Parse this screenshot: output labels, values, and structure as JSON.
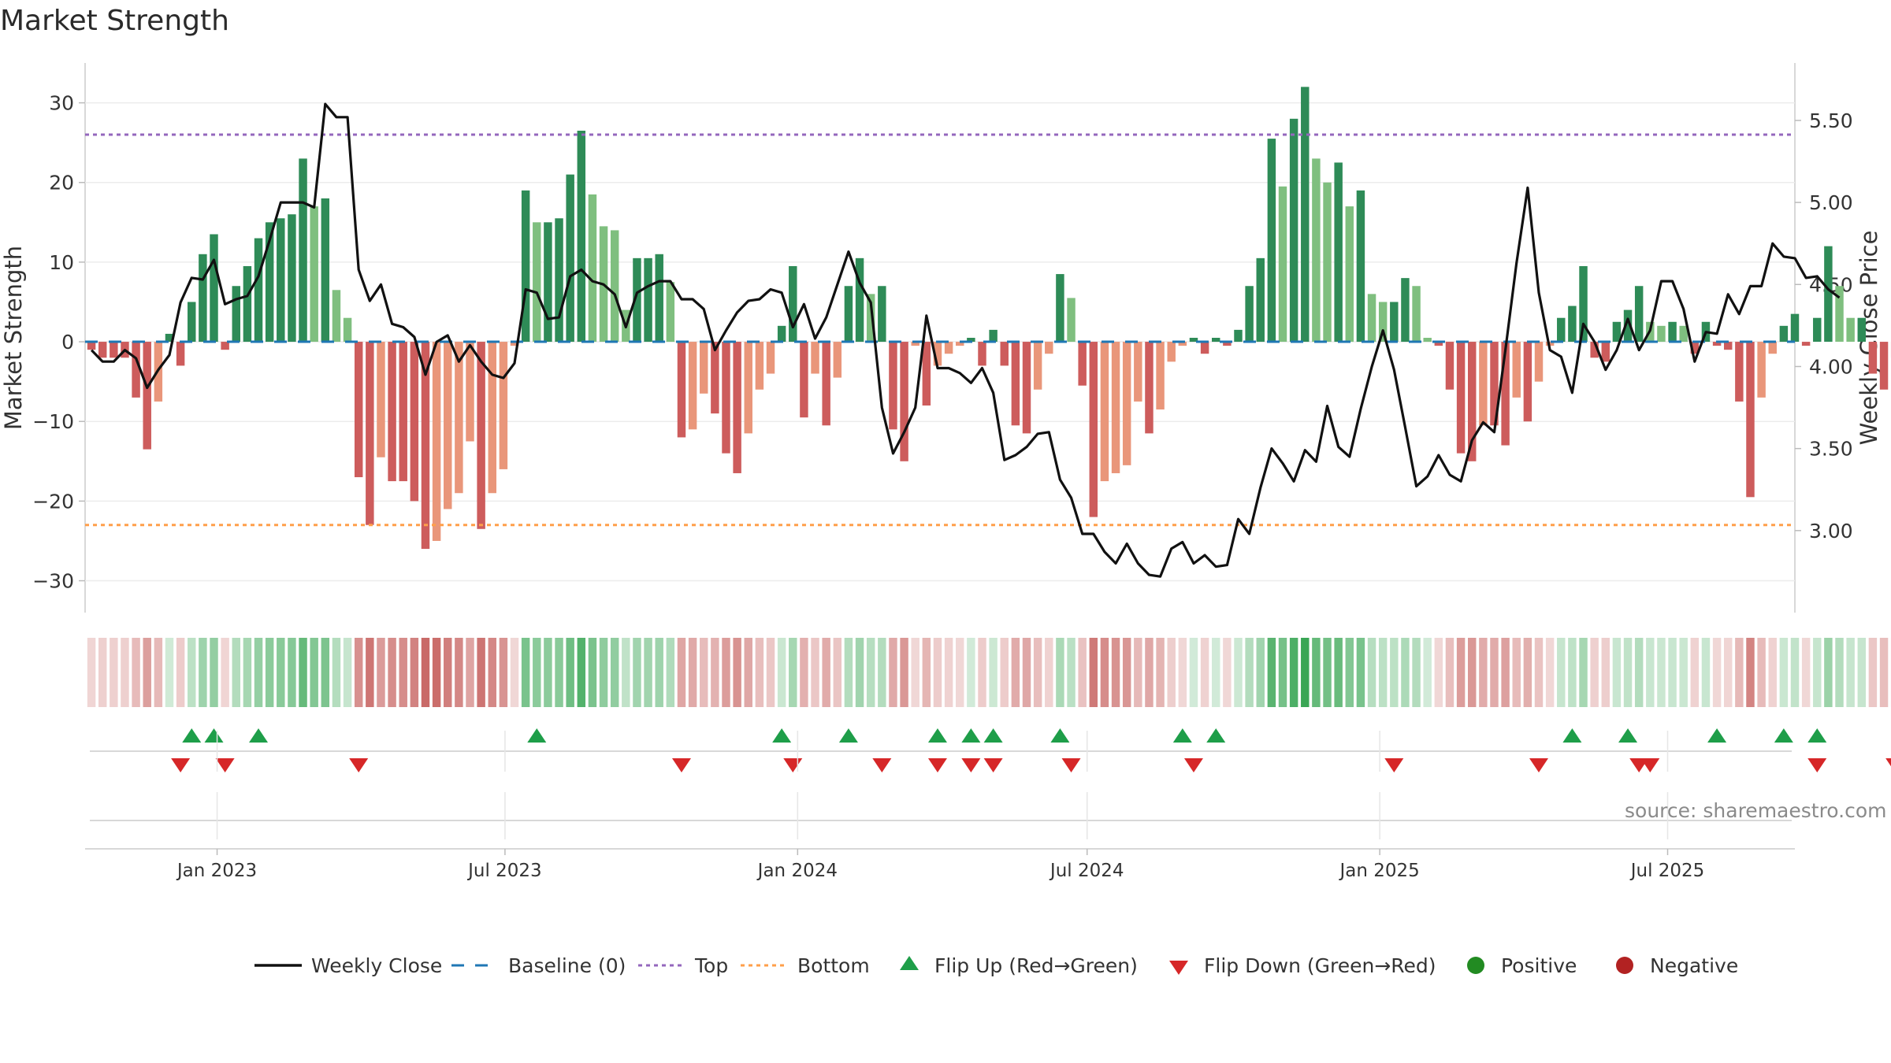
{
  "chart_data": {
    "type": "bar",
    "title": "Market Strength",
    "source": "source: sharemaestro.com",
    "ylabel": "Market Strength",
    "y2label": "Weekly Close Price",
    "ylim": [
      -34,
      35
    ],
    "y2lim": [
      2.5,
      5.85
    ],
    "yticks": [
      30,
      20,
      10,
      0,
      -10,
      -20,
      -30
    ],
    "ytick_labels": [
      "30",
      "20",
      "10",
      "0",
      "−10",
      "−20",
      "−30"
    ],
    "y2ticks": [
      5.5,
      5.0,
      4.5,
      4.0,
      3.5,
      3.0
    ],
    "y2tick_labels": [
      "5.50",
      "5.00",
      "4.50",
      "4.00",
      "3.50",
      "3.00"
    ],
    "top_level": 26,
    "bottom_level": -23,
    "baseline": 0,
    "start_date": "2022-10-14",
    "x_range": [
      "2022-10-10",
      "2025-09-19"
    ],
    "x_ticks": [
      {
        "date": "2023-01-01",
        "label": "Jan 2023"
      },
      {
        "date": "2023-07-01",
        "label": "Jul 2023"
      },
      {
        "date": "2024-01-01",
        "label": "Jan 2024"
      },
      {
        "date": "2024-07-01",
        "label": "Jul 2024"
      },
      {
        "date": "2025-01-01",
        "label": "Jan 2025"
      },
      {
        "date": "2025-07-01",
        "label": "Jul 2025"
      }
    ],
    "strength": [
      -1,
      -2,
      -2,
      -2,
      -7,
      -13.5,
      -7.5,
      1,
      -3,
      5,
      11,
      13.5,
      -1,
      7,
      9.5,
      13,
      15,
      15.5,
      16,
      23,
      17,
      18,
      6.5,
      3,
      -17,
      -23,
      -14.5,
      -17.5,
      -17.5,
      -20,
      -26,
      -25,
      -21,
      -19,
      -12.5,
      -23.5,
      -19,
      -16,
      -0.5,
      19,
      15,
      15,
      15.5,
      21,
      26.5,
      18.5,
      14.5,
      14,
      4,
      10.5,
      10.5,
      11,
      7.5,
      -12,
      -11,
      -6.5,
      -9,
      -14,
      -16.5,
      -11.5,
      -6,
      -4,
      2,
      9.5,
      -9.5,
      -4,
      -10.5,
      -4.5,
      7,
      10.5,
      6,
      7,
      -11,
      -15,
      -0.5,
      -8,
      -3,
      -1.5,
      -0.5,
      0.5,
      -3,
      1.5,
      -3,
      -10.5,
      -11.5,
      -6,
      -1.5,
      8.5,
      5.5,
      -5.5,
      -22,
      -17.5,
      -16.5,
      -15.5,
      -7.5,
      -11.5,
      -8.5,
      -2.5,
      -0.5,
      0.5,
      -1.5,
      0.5,
      -0.5,
      1.5,
      7,
      10.5,
      25.5,
      19.5,
      28,
      32,
      23,
      20,
      22.5,
      17,
      19,
      6,
      5,
      5,
      8,
      7,
      0.5,
      -0.5,
      -6,
      -14,
      -15,
      -10.5,
      -10.5,
      -13,
      -7,
      -10,
      -5,
      -0.5,
      3,
      4.5,
      9.5,
      -2,
      -2.5,
      2.5,
      4,
      7,
      2.5,
      2,
      2.5,
      2,
      -1.5,
      2.5,
      -0.5,
      -1,
      -7.5,
      -19.5,
      -7,
      -1.5,
      2,
      3.5,
      -0.5,
      3,
      12,
      7,
      3,
      3,
      -4,
      -6,
      -2
    ],
    "close": [
      4.1,
      4.03,
      4.03,
      4.1,
      4.05,
      3.87,
      3.98,
      4.07,
      4.39,
      4.54,
      4.53,
      4.65,
      4.38,
      4.41,
      4.43,
      4.55,
      4.77,
      5.0,
      5.0,
      5.0,
      4.97,
      5.6,
      5.52,
      5.52,
      4.59,
      4.4,
      4.5,
      4.26,
      4.24,
      4.18,
      3.95,
      4.15,
      4.19,
      4.03,
      4.13,
      4.03,
      3.95,
      3.93,
      4.02,
      4.47,
      4.45,
      4.29,
      4.3,
      4.55,
      4.59,
      4.52,
      4.5,
      4.44,
      4.24,
      4.45,
      4.49,
      4.52,
      4.52,
      4.41,
      4.41,
      4.35,
      4.1,
      4.22,
      4.33,
      4.4,
      4.41,
      4.47,
      4.45,
      4.24,
      4.38,
      4.17,
      4.3,
      4.5,
      4.7,
      4.51,
      4.39,
      3.75,
      3.47,
      3.6,
      3.75,
      4.31,
      3.99,
      3.99,
      3.96,
      3.9,
      3.99,
      3.84,
      3.43,
      3.46,
      3.51,
      3.59,
      3.6,
      3.31,
      3.2,
      2.98,
      2.98,
      2.87,
      2.8,
      2.92,
      2.8,
      2.73,
      2.72,
      2.89,
      2.93,
      2.8,
      2.85,
      2.78,
      2.79,
      3.07,
      2.98,
      3.26,
      3.5,
      3.41,
      3.3,
      3.49,
      3.42,
      3.76,
      3.51,
      3.45,
      3.74,
      4.0,
      4.22,
      3.98,
      3.63,
      3.27,
      3.33,
      3.46,
      3.34,
      3.3,
      3.55,
      3.66,
      3.6,
      4.1,
      4.63,
      5.09,
      4.45,
      4.1,
      4.06,
      3.84,
      4.26,
      4.15,
      3.98,
      4.1,
      4.29,
      4.1,
      4.22,
      4.52,
      4.52,
      4.35,
      4.03,
      4.21,
      4.2,
      4.44,
      4.32,
      4.49,
      4.49,
      4.75,
      4.67,
      4.66,
      4.54,
      4.55,
      4.47,
      4.42
    ],
    "flip_up": [
      9,
      11,
      15,
      40,
      62,
      68,
      76,
      79,
      81,
      87,
      98,
      101,
      133,
      138,
      146,
      152,
      155
    ],
    "flip_down": [
      8,
      12,
      24,
      53,
      63,
      71,
      76,
      79,
      81,
      88,
      99,
      117,
      130,
      139,
      140,
      155,
      162
    ],
    "legend": [
      {
        "label": "Weekly Close",
        "kind": "line"
      },
      {
        "label": "Baseline (0)",
        "kind": "dash"
      },
      {
        "label": "Top",
        "kind": "dot-purple"
      },
      {
        "label": "Bottom",
        "kind": "dot-orange"
      },
      {
        "label": "Flip Up (Red→Green)",
        "kind": "tri-up"
      },
      {
        "label": "Flip Down (Green→Red)",
        "kind": "tri-down"
      },
      {
        "label": "Positive",
        "kind": "circle-green"
      },
      {
        "label": "Negative",
        "kind": "circle-red"
      }
    ],
    "colors": {
      "pos_strong": "#2e8b57",
      "pos_weak": "#7fbf7f",
      "neg_strong": "#cd5c5c",
      "neg_weak": "#e9967a",
      "line": "#111111",
      "baseline": "#1f77b4",
      "top": "#9467bd",
      "bottom": "#ff9f4a",
      "flip_up": "#1e9e49",
      "flip_down": "#d62728",
      "positive": "#228b22",
      "negative": "#b22222"
    }
  }
}
